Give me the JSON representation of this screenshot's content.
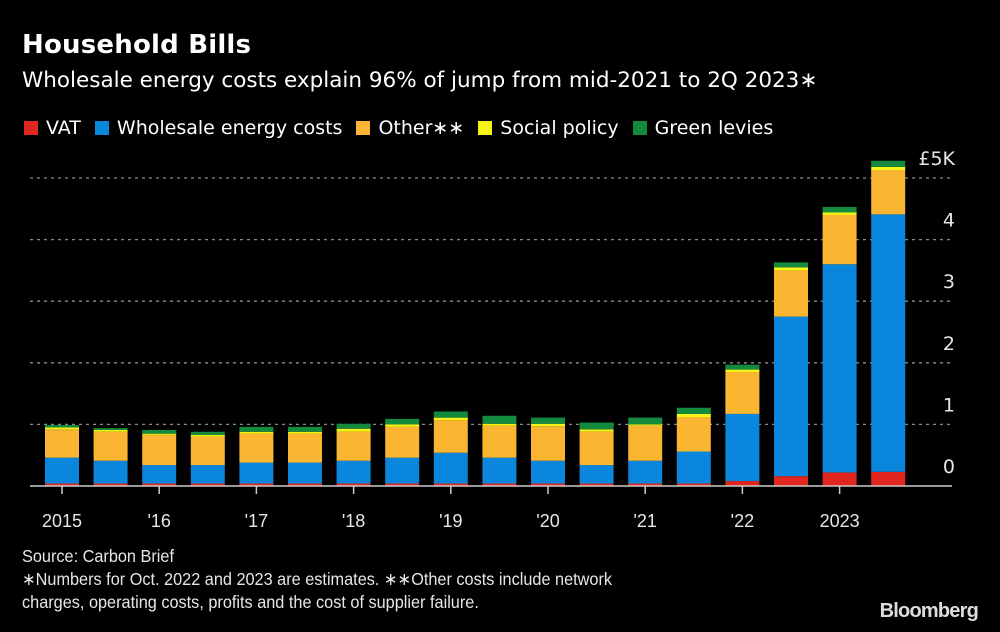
{
  "chart_data": {
    "type": "bar",
    "stacked": true,
    "title": "Household Bills",
    "subtitle": "Wholesale energy costs explain 96% of jump from mid-2021 to 2Q 2023∗",
    "xlabel": "",
    "ylabel": "",
    "ylim": [
      0,
      5
    ],
    "y_unit": "£ thousands",
    "y_ticks": [
      0,
      1,
      2,
      3,
      4,
      5
    ],
    "y_tick_labels": [
      "0",
      "1",
      "2",
      "3",
      "4",
      "£5K"
    ],
    "grid": true,
    "legend_position": "top-left",
    "x_tick_labels": [
      "2015",
      "",
      "'16",
      "",
      "'17",
      "",
      "'18",
      "",
      "'19",
      "",
      "'20",
      "",
      "'21",
      "",
      "'22",
      "",
      "2023",
      ""
    ],
    "series": [
      {
        "name": "VAT",
        "color": "#e0261f",
        "values": [
          0.04,
          0.04,
          0.04,
          0.04,
          0.04,
          0.04,
          0.04,
          0.04,
          0.04,
          0.04,
          0.04,
          0.04,
          0.04,
          0.04,
          0.08,
          0.16,
          0.22,
          0.23
        ]
      },
      {
        "name": "Wholesale energy costs",
        "color": "#0a87dc",
        "values": [
          0.42,
          0.37,
          0.3,
          0.3,
          0.34,
          0.34,
          0.37,
          0.42,
          0.5,
          0.42,
          0.37,
          0.3,
          0.37,
          0.52,
          1.09,
          2.59,
          3.38,
          4.18
        ]
      },
      {
        "name": "Other∗∗",
        "color": "#fbb631",
        "values": [
          0.46,
          0.47,
          0.49,
          0.46,
          0.47,
          0.47,
          0.47,
          0.5,
          0.53,
          0.52,
          0.56,
          0.54,
          0.57,
          0.56,
          0.68,
          0.75,
          0.8,
          0.72
        ]
      },
      {
        "name": "Social policy",
        "color": "#f6f316",
        "values": [
          0.03,
          0.03,
          0.02,
          0.03,
          0.03,
          0.03,
          0.05,
          0.04,
          0.04,
          0.03,
          0.04,
          0.04,
          0.02,
          0.05,
          0.04,
          0.05,
          0.04,
          0.05
        ]
      },
      {
        "name": "Green levies",
        "color": "#138a3e",
        "values": [
          0.04,
          0.03,
          0.06,
          0.05,
          0.08,
          0.08,
          0.08,
          0.09,
          0.1,
          0.13,
          0.1,
          0.11,
          0.11,
          0.1,
          0.08,
          0.08,
          0.09,
          0.1
        ]
      }
    ]
  },
  "footer": {
    "source": "Source: Carbon Brief",
    "note1": "∗Numbers for Oct. 2022 and 2023 are estimates. ∗∗Other costs include network",
    "note2": "charges, operating costs, profits and the cost of supplier failure.",
    "logo": "Bloomberg"
  }
}
